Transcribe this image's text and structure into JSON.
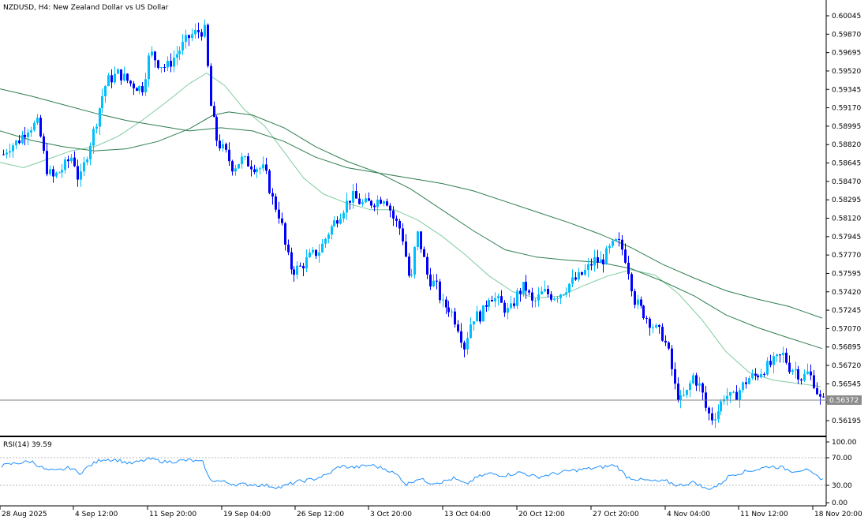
{
  "header": {
    "title": "NZDUSD, H4:  New Zealand Dollar vs US Dollar"
  },
  "colors": {
    "bull": "#00bfff",
    "bear": "#0000ff",
    "ma_fast": "#7fcca0",
    "ma_slow": "#2e7d4f",
    "rsi_line": "#1e90ff",
    "price_label_bg": "#8c8c8c"
  },
  "current_price": "0.56372",
  "rsi_panel": {
    "label": "RSI(14) 39.59",
    "ticks": [
      "100.00",
      "70.00",
      "30.00",
      "0.00"
    ]
  },
  "chart_data": {
    "type": "candlestick",
    "title": "NZDUSD, H4:  New Zealand Dollar vs US Dollar",
    "y_ticks": [
      "0.60045",
      "0.59870",
      "0.59695",
      "0.59520",
      "0.59345",
      "0.59170",
      "0.58995",
      "0.58820",
      "0.58645",
      "0.58470",
      "0.58295",
      "0.58120",
      "0.57945",
      "0.57770",
      "0.57595",
      "0.57420",
      "0.57245",
      "0.57070",
      "0.56895",
      "0.56720",
      "0.56545",
      "0.56372",
      "0.56195"
    ],
    "ylim": [
      0.5606,
      0.6009
    ],
    "x_ticks": [
      "28 Aug 2025",
      "4 Sep 12:00",
      "11 Sep 20:00",
      "19 Sep 04:00",
      "26 Sep 12:00",
      "3 Oct 20:00",
      "13 Oct 04:00",
      "20 Oct 12:00",
      "27 Oct 20:00",
      "4 Nov 04:00",
      "11 Nov 12:00",
      "18 Nov 20:00"
    ],
    "close_path": [
      [
        0,
        0.5868
      ],
      [
        10,
        0.588
      ],
      [
        22,
        0.5885
      ],
      [
        35,
        0.5898
      ],
      [
        48,
        0.5902
      ],
      [
        58,
        0.586
      ],
      [
        66,
        0.585
      ],
      [
        80,
        0.586
      ],
      [
        92,
        0.5872
      ],
      [
        100,
        0.5845
      ],
      [
        112,
        0.588
      ],
      [
        120,
        0.59
      ],
      [
        128,
        0.5925
      ],
      [
        135,
        0.5942
      ],
      [
        150,
        0.595
      ],
      [
        165,
        0.594
      ],
      [
        180,
        0.5935
      ],
      [
        190,
        0.597
      ],
      [
        200,
        0.596
      ],
      [
        210,
        0.5955
      ],
      [
        225,
        0.597
      ],
      [
        240,
        0.5985
      ],
      [
        252,
        0.599
      ],
      [
        260,
        0.599
      ],
      [
        265,
        0.5925
      ],
      [
        275,
        0.5885
      ],
      [
        285,
        0.5875
      ],
      [
        295,
        0.586
      ],
      [
        305,
        0.5868
      ],
      [
        320,
        0.5862
      ],
      [
        335,
        0.5858
      ],
      [
        345,
        0.583
      ],
      [
        355,
        0.5812
      ],
      [
        362,
        0.578
      ],
      [
        370,
        0.5762
      ],
      [
        380,
        0.5765
      ],
      [
        392,
        0.5775
      ],
      [
        405,
        0.5782
      ],
      [
        415,
        0.5798
      ],
      [
        425,
        0.581
      ],
      [
        435,
        0.5822
      ],
      [
        445,
        0.5833
      ],
      [
        460,
        0.5825
      ],
      [
        475,
        0.5828
      ],
      [
        488,
        0.5833
      ],
      [
        498,
        0.5812
      ],
      [
        508,
        0.58
      ],
      [
        515,
        0.577
      ],
      [
        520,
        0.5745
      ],
      [
        528,
        0.58
      ],
      [
        535,
        0.578
      ],
      [
        542,
        0.5755
      ],
      [
        552,
        0.5748
      ],
      [
        560,
        0.573
      ],
      [
        570,
        0.5726
      ],
      [
        580,
        0.571
      ],
      [
        588,
        0.569
      ],
      [
        598,
        0.5718
      ],
      [
        610,
        0.572
      ],
      [
        620,
        0.574
      ],
      [
        632,
        0.5732
      ],
      [
        645,
        0.5722
      ],
      [
        655,
        0.574
      ],
      [
        665,
        0.5748
      ],
      [
        675,
        0.573
      ],
      [
        688,
        0.5742
      ],
      [
        700,
        0.5738
      ],
      [
        712,
        0.5742
      ],
      [
        722,
        0.575
      ],
      [
        732,
        0.5755
      ],
      [
        742,
        0.5762
      ],
      [
        752,
        0.5772
      ],
      [
        762,
        0.577
      ],
      [
        772,
        0.5782
      ],
      [
        782,
        0.579
      ],
      [
        790,
        0.578
      ],
      [
        797,
        0.576
      ],
      [
        803,
        0.5735
      ],
      [
        812,
        0.5725
      ],
      [
        822,
        0.5715
      ],
      [
        832,
        0.5705
      ],
      [
        840,
        0.57
      ],
      [
        848,
        0.568
      ],
      [
        855,
        0.565
      ],
      [
        862,
        0.5638
      ],
      [
        870,
        0.5645
      ],
      [
        878,
        0.5662
      ],
      [
        888,
        0.565
      ],
      [
        895,
        0.5628
      ],
      [
        902,
        0.5622
      ],
      [
        910,
        0.563
      ],
      [
        918,
        0.5645
      ],
      [
        928,
        0.564
      ],
      [
        938,
        0.565
      ],
      [
        948,
        0.566
      ],
      [
        958,
        0.5662
      ],
      [
        966,
        0.5668
      ],
      [
        975,
        0.5672
      ],
      [
        985,
        0.5678
      ],
      [
        992,
        0.5682
      ],
      [
        1000,
        0.567
      ],
      [
        1008,
        0.5668
      ],
      [
        1016,
        0.566
      ],
      [
        1024,
        0.5665
      ],
      [
        1032,
        0.5655
      ],
      [
        1038,
        0.564
      ],
      [
        1043,
        0.56372
      ]
    ],
    "overlays": [
      {
        "name": "fast MA",
        "points": [
          [
            0,
            0.5865
          ],
          [
            30,
            0.586
          ],
          [
            60,
            0.5868
          ],
          [
            90,
            0.5876
          ],
          [
            120,
            0.588
          ],
          [
            150,
            0.589
          ],
          [
            180,
            0.5905
          ],
          [
            210,
            0.5922
          ],
          [
            240,
            0.594
          ],
          [
            262,
            0.595
          ],
          [
            285,
            0.5938
          ],
          [
            310,
            0.5915
          ],
          [
            335,
            0.59
          ],
          [
            360,
            0.5875
          ],
          [
            385,
            0.585
          ],
          [
            410,
            0.5835
          ],
          [
            440,
            0.5826
          ],
          [
            470,
            0.582
          ],
          [
            500,
            0.582
          ],
          [
            530,
            0.581
          ],
          [
            560,
            0.5795
          ],
          [
            590,
            0.5777
          ],
          [
            620,
            0.5757
          ],
          [
            650,
            0.5742
          ],
          [
            680,
            0.5736
          ],
          [
            710,
            0.5738
          ],
          [
            740,
            0.5748
          ],
          [
            770,
            0.5757
          ],
          [
            800,
            0.5763
          ],
          [
            830,
            0.5758
          ],
          [
            860,
            0.574
          ],
          [
            890,
            0.5715
          ],
          [
            920,
            0.5685
          ],
          [
            950,
            0.5665
          ],
          [
            980,
            0.5658
          ],
          [
            1010,
            0.5655
          ],
          [
            1040,
            0.5652
          ]
        ]
      },
      {
        "name": "slow MA",
        "points": [
          [
            0,
            0.5935
          ],
          [
            40,
            0.5928
          ],
          [
            80,
            0.592
          ],
          [
            120,
            0.5912
          ],
          [
            160,
            0.5905
          ],
          [
            200,
            0.59
          ],
          [
            240,
            0.5895
          ],
          [
            280,
            0.5898
          ],
          [
            320,
            0.5895
          ],
          [
            360,
            0.5885
          ],
          [
            400,
            0.587
          ],
          [
            440,
            0.586
          ],
          [
            480,
            0.5855
          ],
          [
            520,
            0.585
          ],
          [
            560,
            0.5845
          ],
          [
            600,
            0.5838
          ],
          [
            640,
            0.5828
          ],
          [
            680,
            0.5818
          ],
          [
            720,
            0.5808
          ],
          [
            760,
            0.5797
          ],
          [
            800,
            0.5784
          ],
          [
            840,
            0.5768
          ],
          [
            880,
            0.5755
          ],
          [
            920,
            0.5743
          ],
          [
            960,
            0.5735
          ],
          [
            1000,
            0.5728
          ],
          [
            1042,
            0.5717
          ]
        ]
      },
      {
        "name": "mid MA",
        "points": [
          [
            0,
            0.5895
          ],
          [
            40,
            0.5886
          ],
          [
            80,
            0.588
          ],
          [
            120,
            0.5876
          ],
          [
            160,
            0.5878
          ],
          [
            200,
            0.5885
          ],
          [
            240,
            0.5897
          ],
          [
            270,
            0.591
          ],
          [
            290,
            0.5913
          ],
          [
            320,
            0.591
          ],
          [
            360,
            0.5898
          ],
          [
            400,
            0.588
          ],
          [
            440,
            0.5866
          ],
          [
            480,
            0.5855
          ],
          [
            520,
            0.584
          ],
          [
            560,
            0.582
          ],
          [
            600,
            0.58
          ],
          [
            640,
            0.5782
          ],
          [
            680,
            0.5775
          ],
          [
            720,
            0.5772
          ],
          [
            760,
            0.577
          ],
          [
            800,
            0.5764
          ],
          [
            840,
            0.5752
          ],
          [
            880,
            0.5738
          ],
          [
            920,
            0.572
          ],
          [
            960,
            0.5708
          ],
          [
            1000,
            0.5698
          ],
          [
            1042,
            0.5688
          ]
        ]
      }
    ],
    "rsi_values": [
      [
        0,
        60
      ],
      [
        20,
        65
      ],
      [
        40,
        68
      ],
      [
        58,
        54
      ],
      [
        70,
        52
      ],
      [
        90,
        58
      ],
      [
        100,
        48
      ],
      [
        115,
        62
      ],
      [
        130,
        72
      ],
      [
        150,
        70
      ],
      [
        165,
        64
      ],
      [
        190,
        72
      ],
      [
        210,
        67
      ],
      [
        240,
        70
      ],
      [
        258,
        66
      ],
      [
        265,
        38
      ],
      [
        280,
        35
      ],
      [
        300,
        30
      ],
      [
        320,
        30
      ],
      [
        340,
        28
      ],
      [
        355,
        25
      ],
      [
        375,
        34
      ],
      [
        395,
        38
      ],
      [
        415,
        46
      ],
      [
        430,
        60
      ],
      [
        450,
        58
      ],
      [
        470,
        62
      ],
      [
        490,
        55
      ],
      [
        505,
        44
      ],
      [
        515,
        30
      ],
      [
        530,
        40
      ],
      [
        545,
        33
      ],
      [
        560,
        34
      ],
      [
        575,
        40
      ],
      [
        590,
        30
      ],
      [
        605,
        42
      ],
      [
        620,
        48
      ],
      [
        640,
        45
      ],
      [
        660,
        50
      ],
      [
        680,
        42
      ],
      [
        700,
        47
      ],
      [
        720,
        52
      ],
      [
        740,
        55
      ],
      [
        760,
        58
      ],
      [
        780,
        62
      ],
      [
        795,
        42
      ],
      [
        810,
        38
      ],
      [
        830,
        35
      ],
      [
        845,
        35
      ],
      [
        860,
        28
      ],
      [
        880,
        34
      ],
      [
        895,
        22
      ],
      [
        910,
        28
      ],
      [
        925,
        45
      ],
      [
        940,
        50
      ],
      [
        960,
        55
      ],
      [
        975,
        60
      ],
      [
        990,
        58
      ],
      [
        1005,
        52
      ],
      [
        1020,
        55
      ],
      [
        1032,
        45
      ],
      [
        1042,
        39.59
      ]
    ]
  }
}
